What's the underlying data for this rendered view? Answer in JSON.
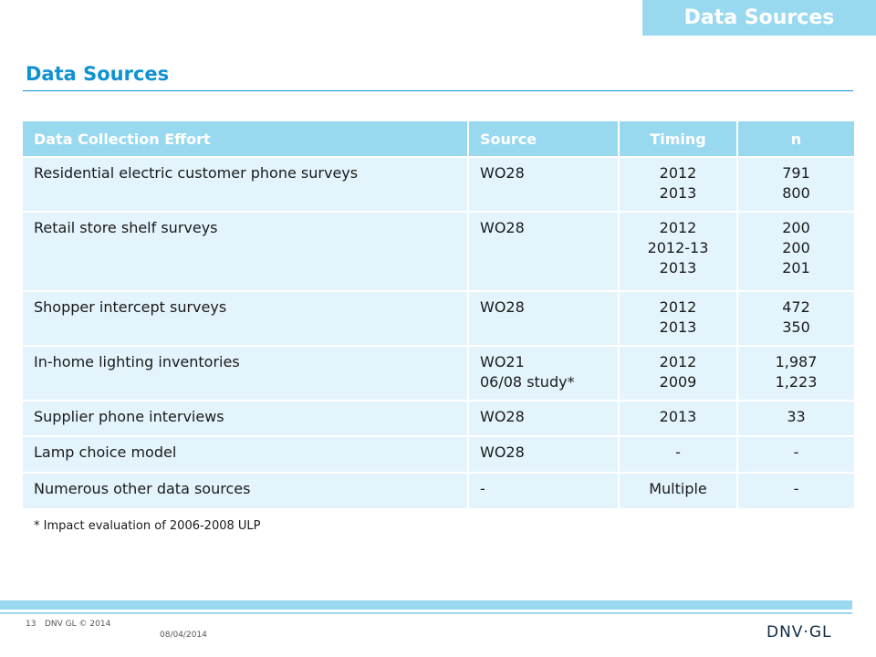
{
  "header": {
    "corner_tab": "Data Sources",
    "title": "Data Sources"
  },
  "table": {
    "columns": [
      "Data Collection Effort",
      "Source",
      "Timing",
      "n"
    ],
    "rows": [
      {
        "effort": "Residential electric customer phone surveys",
        "source": "WO28",
        "timing": "2012\n2013",
        "n": "791\n800"
      },
      {
        "effort": "Retail store shelf surveys",
        "source": "WO28",
        "timing": "2012\n2012-13\n2013",
        "n": "200\n200\n201"
      },
      {
        "effort": "Shopper intercept surveys",
        "source": "WO28",
        "timing": "2012\n2013",
        "n": "472\n350"
      },
      {
        "effort": "In-home lighting inventories",
        "source": "WO21\n06/08 study*",
        "timing": "2012\n2009",
        "n": "1,987\n1,223"
      },
      {
        "effort": "Supplier phone interviews",
        "source": "WO28",
        "timing": "2013",
        "n": "33"
      },
      {
        "effort": "Lamp choice model",
        "source": "WO28",
        "timing": "-",
        "n": "-"
      },
      {
        "effort": "Numerous other data sources",
        "source": "-",
        "timing": "Multiple",
        "n": "-"
      }
    ]
  },
  "footnote": "* Impact evaluation of 2006-2008 ULP",
  "footer": {
    "page_number": "13",
    "copyright": "DNV GL © 2014",
    "date": "08/04/2014",
    "logo_text": "DNV·GL"
  },
  "colors": {
    "accent": "#0f91d2",
    "header_fill": "#99d9f0",
    "row_fill": "#e3f4fc"
  }
}
